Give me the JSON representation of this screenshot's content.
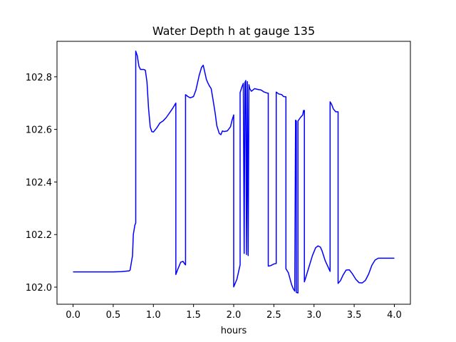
{
  "chart_data": {
    "type": "line",
    "title": "Water Depth h at gauge 135",
    "xlabel": "hours",
    "ylabel": "",
    "xlim": [
      -0.2,
      4.2
    ],
    "ylim": [
      101.935,
      102.935
    ],
    "x_ticks": [
      0.0,
      0.5,
      1.0,
      1.5,
      2.0,
      2.5,
      3.0,
      3.5,
      4.0
    ],
    "x_tick_labels": [
      "0.0",
      "0.5",
      "1.0",
      "1.5",
      "2.0",
      "2.5",
      "3.0",
      "3.5",
      "4.0"
    ],
    "y_ticks": [
      102.0,
      102.2,
      102.4,
      102.6,
      102.8
    ],
    "y_tick_labels": [
      "102.0",
      "102.2",
      "102.4",
      "102.6",
      "102.8"
    ],
    "grid": false,
    "legend": "none",
    "color": "#0000ff",
    "series": [
      {
        "points": [
          [
            0.0,
            102.058
          ],
          [
            0.2,
            102.058
          ],
          [
            0.5,
            102.058
          ],
          [
            0.6,
            102.059
          ],
          [
            0.7,
            102.062
          ],
          [
            0.71,
            102.065
          ],
          [
            0.74,
            102.12
          ],
          [
            0.75,
            102.2
          ],
          [
            0.77,
            102.236
          ],
          [
            0.78,
            102.244
          ],
          [
            0.78,
            102.898
          ],
          [
            0.8,
            102.88
          ],
          [
            0.82,
            102.84
          ],
          [
            0.84,
            102.828
          ],
          [
            0.88,
            102.828
          ],
          [
            0.9,
            102.825
          ],
          [
            0.92,
            102.78
          ],
          [
            0.94,
            102.68
          ],
          [
            0.96,
            102.61
          ],
          [
            0.98,
            102.592
          ],
          [
            1.0,
            102.59
          ],
          [
            1.04,
            102.605
          ],
          [
            1.08,
            102.624
          ],
          [
            1.12,
            102.632
          ],
          [
            1.16,
            102.645
          ],
          [
            1.2,
            102.662
          ],
          [
            1.24,
            102.68
          ],
          [
            1.28,
            102.7
          ],
          [
            1.28,
            102.048
          ],
          [
            1.3,
            102.065
          ],
          [
            1.34,
            102.095
          ],
          [
            1.37,
            102.098
          ],
          [
            1.39,
            102.088
          ],
          [
            1.4,
            102.085
          ],
          [
            1.4,
            102.732
          ],
          [
            1.43,
            102.725
          ],
          [
            1.46,
            102.72
          ],
          [
            1.5,
            102.725
          ],
          [
            1.53,
            102.75
          ],
          [
            1.57,
            102.805
          ],
          [
            1.6,
            102.836
          ],
          [
            1.62,
            102.844
          ],
          [
            1.64,
            102.818
          ],
          [
            1.66,
            102.79
          ],
          [
            1.68,
            102.776
          ],
          [
            1.7,
            102.764
          ],
          [
            1.72,
            102.755
          ],
          [
            1.74,
            102.718
          ],
          [
            1.77,
            102.66
          ],
          [
            1.79,
            102.614
          ],
          [
            1.82,
            102.585
          ],
          [
            1.84,
            102.58
          ],
          [
            1.86,
            102.594
          ],
          [
            1.88,
            102.592
          ],
          [
            1.92,
            102.594
          ],
          [
            1.96,
            102.61
          ],
          [
            1.98,
            102.635
          ],
          [
            2.0,
            102.655
          ],
          [
            2.0,
            102.001
          ],
          [
            2.04,
            102.03
          ],
          [
            2.08,
            102.085
          ],
          [
            2.08,
            102.74
          ],
          [
            2.1,
            102.76
          ],
          [
            2.12,
            102.775
          ],
          [
            2.13,
            102.128
          ],
          [
            2.14,
            102.778
          ],
          [
            2.15,
            102.786
          ],
          [
            2.16,
            102.124
          ],
          [
            2.17,
            102.782
          ],
          [
            2.18,
            102.12
          ],
          [
            2.19,
            102.77
          ],
          [
            2.2,
            102.755
          ],
          [
            2.22,
            102.745
          ],
          [
            2.26,
            102.755
          ],
          [
            2.3,
            102.752
          ],
          [
            2.34,
            102.75
          ],
          [
            2.38,
            102.742
          ],
          [
            2.42,
            102.738
          ],
          [
            2.43,
            102.738
          ],
          [
            2.43,
            102.08
          ],
          [
            2.46,
            102.082
          ],
          [
            2.5,
            102.088
          ],
          [
            2.53,
            102.09
          ],
          [
            2.53,
            102.742
          ],
          [
            2.56,
            102.735
          ],
          [
            2.6,
            102.732
          ],
          [
            2.62,
            102.725
          ],
          [
            2.65,
            102.724
          ],
          [
            2.65,
            102.07
          ],
          [
            2.68,
            102.055
          ],
          [
            2.72,
            102.01
          ],
          [
            2.74,
            101.995
          ],
          [
            2.76,
            101.985
          ],
          [
            2.77,
            102.635
          ],
          [
            2.78,
            102.632
          ],
          [
            2.78,
            101.98
          ],
          [
            2.8,
            101.978
          ],
          [
            2.8,
            102.632
          ],
          [
            2.83,
            102.645
          ],
          [
            2.86,
            102.655
          ],
          [
            2.87,
            102.672
          ],
          [
            2.88,
            102.672
          ],
          [
            2.88,
            102.02
          ],
          [
            2.9,
            102.04
          ],
          [
            2.94,
            102.08
          ],
          [
            2.98,
            102.12
          ],
          [
            3.02,
            102.15
          ],
          [
            3.05,
            102.157
          ],
          [
            3.08,
            102.152
          ],
          [
            3.1,
            102.138
          ],
          [
            3.14,
            102.1
          ],
          [
            3.2,
            102.06
          ],
          [
            3.2,
            102.705
          ],
          [
            3.22,
            102.695
          ],
          [
            3.24,
            102.678
          ],
          [
            3.27,
            102.667
          ],
          [
            3.3,
            102.667
          ],
          [
            3.3,
            102.014
          ],
          [
            3.33,
            102.025
          ],
          [
            3.36,
            102.045
          ],
          [
            3.4,
            102.065
          ],
          [
            3.44,
            102.066
          ],
          [
            3.48,
            102.05
          ],
          [
            3.52,
            102.03
          ],
          [
            3.56,
            102.017
          ],
          [
            3.6,
            102.016
          ],
          [
            3.64,
            102.026
          ],
          [
            3.68,
            102.05
          ],
          [
            3.72,
            102.083
          ],
          [
            3.76,
            102.103
          ],
          [
            3.8,
            102.11
          ],
          [
            4.0,
            102.11
          ]
        ]
      }
    ]
  }
}
